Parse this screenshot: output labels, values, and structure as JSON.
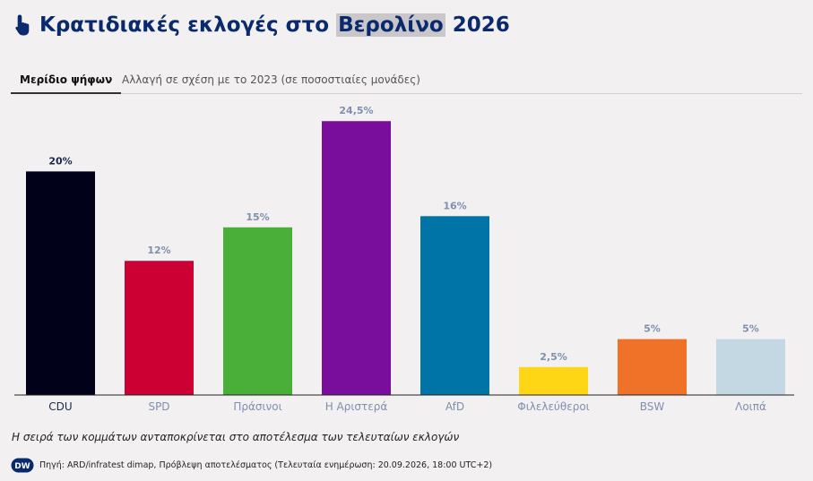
{
  "header": {
    "title_before": "Κρατιδιακές εκλογές στο",
    "title_highlight": "Βερολίνο",
    "title_after": "2026",
    "icon": "hand-pointer-icon"
  },
  "tabs": [
    {
      "label": "Μερίδιο ψήφων",
      "active": true
    },
    {
      "label": "Αλλαγή σε σχέση με το 2023 (σε ποσοστιαίες μονάδες)",
      "active": false
    }
  ],
  "chart_data": {
    "type": "bar",
    "categories": [
      "CDU",
      "SPD",
      "Πράσινοι",
      "Η Αριστερά",
      "AfD",
      "Φιλελεύθεροι",
      "BSW",
      "Λοιπά"
    ],
    "values": [
      20,
      12,
      15,
      24.5,
      16,
      2.5,
      5,
      5
    ],
    "value_labels": [
      "20%",
      "12%",
      "15%",
      "24,5%",
      "16%",
      "2,5%",
      "5%",
      "5%"
    ],
    "colors": [
      "#02011a",
      "#cc0033",
      "#4aaf38",
      "#7a0e9c",
      "#0074a7",
      "#ffd615",
      "#ef7228",
      "#c4d8e3"
    ],
    "highlighted_index": 0,
    "ylim": [
      0,
      25
    ],
    "title": "",
    "xlabel": "",
    "ylabel": ""
  },
  "footer": {
    "note": "Η σειρά των κομμάτων ανταποκρίνεται στο αποτέλεσμα των τελευταίων εκλογών",
    "logo_text": "DW",
    "source": "Πηγή: ARD/infratest dimap, Πρόβλεψη αποτελέσματος (Τελευταία ενημέρωση: 20.09.2026, 18:00 UTC+2)"
  }
}
